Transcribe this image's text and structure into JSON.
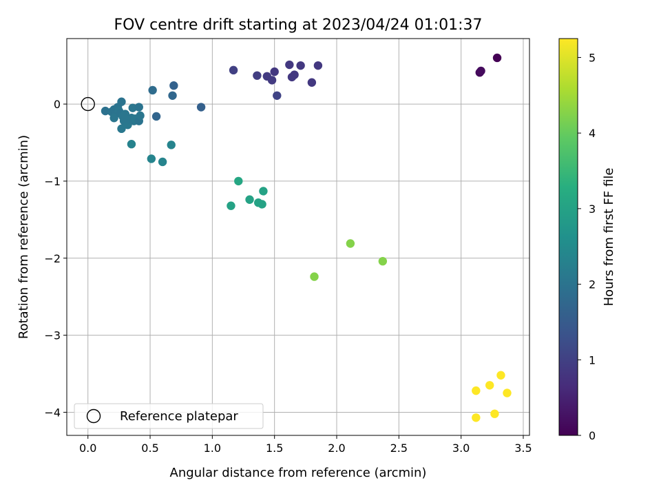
{
  "chart_data": {
    "type": "scatter",
    "title": "FOV centre drift starting at 2023/04/24 01:01:37",
    "xlabel": "Angular distance from reference (arcmin)",
    "ylabel": "Rotation from reference (arcmin)",
    "xlim": [
      -0.17,
      3.55
    ],
    "ylim": [
      -4.3,
      0.85
    ],
    "x_ticks": [
      0.0,
      0.5,
      1.0,
      1.5,
      2.0,
      2.5,
      3.0,
      3.5
    ],
    "x_tick_labels": [
      "0.0",
      "0.5",
      "1.0",
      "1.5",
      "2.0",
      "2.5",
      "3.0",
      "3.5"
    ],
    "y_ticks": [
      0,
      -1,
      -2,
      -3,
      -4
    ],
    "y_tick_labels": [
      "0",
      "−1",
      "−2",
      "−3",
      "−4"
    ],
    "grid": true,
    "legend_position": "lower-left",
    "legend": [
      {
        "label": "Reference platepar",
        "marker": "open-circle"
      }
    ],
    "reference_point": {
      "x": 0.0,
      "y": 0.0
    },
    "colorbar": {
      "label": "Hours from first FF file",
      "colormap": "viridis",
      "range": [
        0,
        5.25
      ],
      "ticks": [
        0,
        1,
        2,
        3,
        4,
        5
      ],
      "tick_labels": [
        "0",
        "1",
        "2",
        "3",
        "4",
        "5"
      ]
    },
    "points": [
      {
        "x": 3.29,
        "y": 0.6,
        "c": 0.0
      },
      {
        "x": 3.15,
        "y": 0.41,
        "c": 0.1
      },
      {
        "x": 3.16,
        "y": 0.43,
        "c": 0.15
      },
      {
        "x": 1.17,
        "y": 0.44,
        "c": 1.0
      },
      {
        "x": 1.36,
        "y": 0.37,
        "c": 0.95
      },
      {
        "x": 1.44,
        "y": 0.36,
        "c": 0.9
      },
      {
        "x": 1.48,
        "y": 0.31,
        "c": 0.9
      },
      {
        "x": 1.5,
        "y": 0.42,
        "c": 0.85
      },
      {
        "x": 1.52,
        "y": 0.11,
        "c": 1.05
      },
      {
        "x": 1.62,
        "y": 0.51,
        "c": 0.85
      },
      {
        "x": 1.64,
        "y": 0.35,
        "c": 0.85
      },
      {
        "x": 1.66,
        "y": 0.38,
        "c": 0.85
      },
      {
        "x": 1.71,
        "y": 0.5,
        "c": 0.85
      },
      {
        "x": 1.8,
        "y": 0.28,
        "c": 0.85
      },
      {
        "x": 1.85,
        "y": 0.5,
        "c": 0.85
      },
      {
        "x": 0.91,
        "y": -0.04,
        "c": 1.6
      },
      {
        "x": 0.69,
        "y": 0.24,
        "c": 1.65
      },
      {
        "x": 0.68,
        "y": 0.11,
        "c": 1.75
      },
      {
        "x": 0.52,
        "y": 0.18,
        "c": 1.85
      },
      {
        "x": 0.55,
        "y": -0.16,
        "c": 1.7
      },
      {
        "x": 0.14,
        "y": -0.09,
        "c": 1.95
      },
      {
        "x": 0.19,
        "y": -0.1,
        "c": 2.0
      },
      {
        "x": 0.21,
        "y": -0.07,
        "c": 2.0
      },
      {
        "x": 0.22,
        "y": -0.13,
        "c": 2.0
      },
      {
        "x": 0.21,
        "y": -0.18,
        "c": 2.05
      },
      {
        "x": 0.24,
        "y": -0.04,
        "c": 2.0
      },
      {
        "x": 0.25,
        "y": -0.09,
        "c": 2.05
      },
      {
        "x": 0.26,
        "y": -0.12,
        "c": 2.0
      },
      {
        "x": 0.27,
        "y": 0.03,
        "c": 2.0
      },
      {
        "x": 0.28,
        "y": -0.16,
        "c": 2.05
      },
      {
        "x": 0.27,
        "y": -0.32,
        "c": 2.1
      },
      {
        "x": 0.29,
        "y": -0.22,
        "c": 2.05
      },
      {
        "x": 0.3,
        "y": -0.13,
        "c": 2.05
      },
      {
        "x": 0.32,
        "y": -0.27,
        "c": 2.1
      },
      {
        "x": 0.33,
        "y": -0.2,
        "c": 2.05
      },
      {
        "x": 0.35,
        "y": -0.18,
        "c": 2.05
      },
      {
        "x": 0.36,
        "y": -0.05,
        "c": 2.05
      },
      {
        "x": 0.37,
        "y": -0.22,
        "c": 2.05
      },
      {
        "x": 0.38,
        "y": -0.19,
        "c": 2.1
      },
      {
        "x": 0.41,
        "y": -0.22,
        "c": 2.0
      },
      {
        "x": 0.41,
        "y": -0.04,
        "c": 2.0
      },
      {
        "x": 0.42,
        "y": -0.15,
        "c": 2.05
      },
      {
        "x": 0.35,
        "y": -0.52,
        "c": 2.3
      },
      {
        "x": 0.51,
        "y": -0.71,
        "c": 2.35
      },
      {
        "x": 0.6,
        "y": -0.75,
        "c": 2.35
      },
      {
        "x": 0.67,
        "y": -0.53,
        "c": 2.35
      },
      {
        "x": 1.21,
        "y": -1.0,
        "c": 3.1
      },
      {
        "x": 1.15,
        "y": -1.32,
        "c": 3.0
      },
      {
        "x": 1.3,
        "y": -1.24,
        "c": 3.0
      },
      {
        "x": 1.37,
        "y": -1.28,
        "c": 3.0
      },
      {
        "x": 1.4,
        "y": -1.3,
        "c": 3.0
      },
      {
        "x": 1.41,
        "y": -1.13,
        "c": 3.0
      },
      {
        "x": 2.11,
        "y": -1.81,
        "c": 4.25
      },
      {
        "x": 2.37,
        "y": -2.04,
        "c": 4.25
      },
      {
        "x": 1.82,
        "y": -2.24,
        "c": 4.25
      },
      {
        "x": 3.12,
        "y": -3.72,
        "c": 5.25
      },
      {
        "x": 3.23,
        "y": -3.65,
        "c": 5.25
      },
      {
        "x": 3.32,
        "y": -3.52,
        "c": 5.25
      },
      {
        "x": 3.37,
        "y": -3.75,
        "c": 5.25
      },
      {
        "x": 3.12,
        "y": -4.07,
        "c": 5.25
      },
      {
        "x": 3.27,
        "y": -4.02,
        "c": 5.25
      }
    ]
  }
}
